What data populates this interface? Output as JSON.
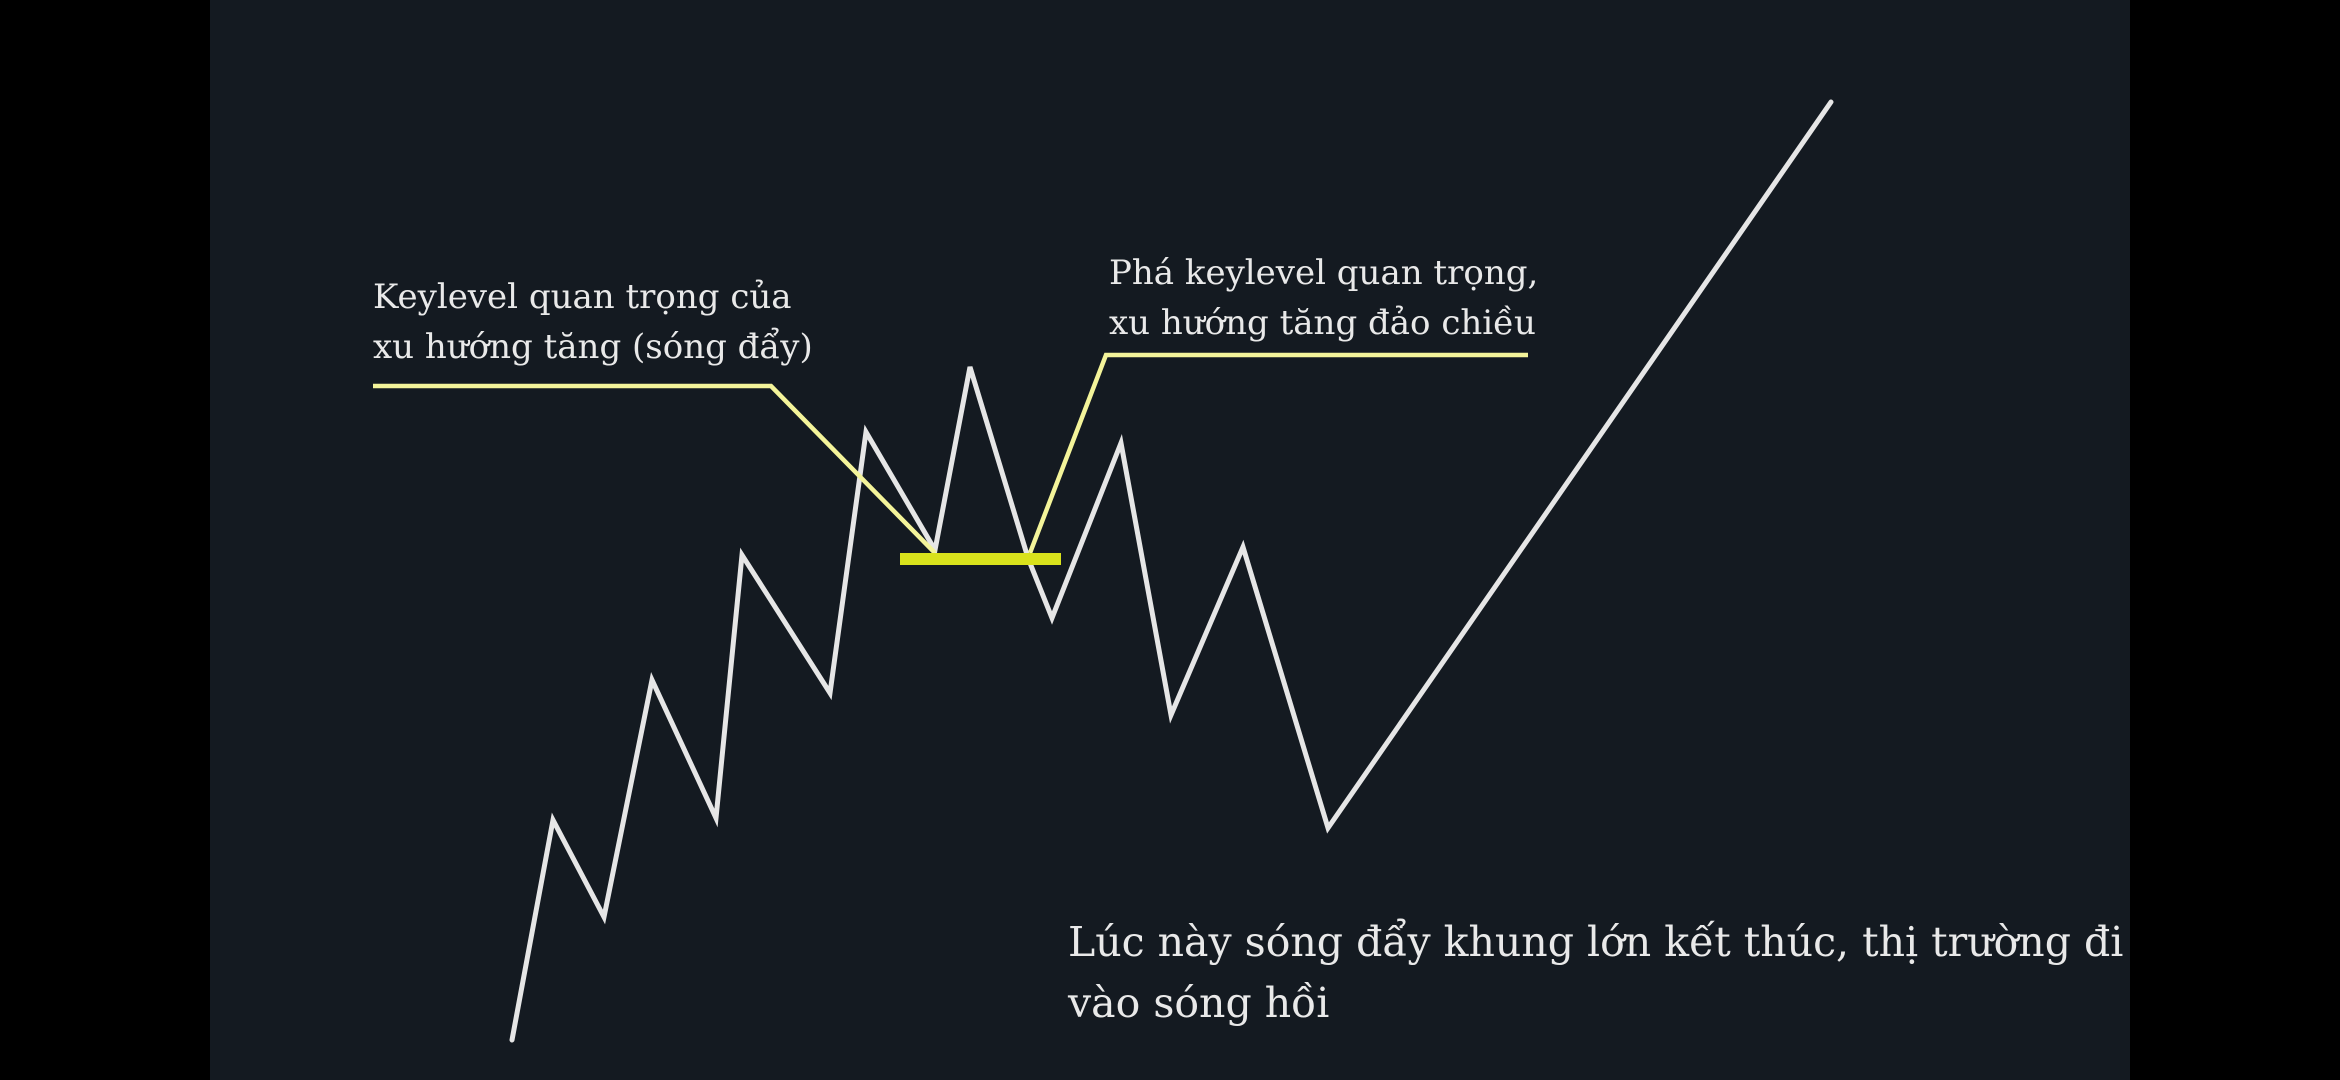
{
  "colors": {
    "outer_background": "#000000",
    "panel_background": "#141a21",
    "price_line": "#e6e6e6",
    "annotation_line": "#f4f49a",
    "keylevel_marker": "#d9e21c",
    "text": "#e9e9e9"
  },
  "annotations": {
    "keylevel_label": {
      "line1": "Keylevel quan trọng của",
      "line2": "xu hướng tăng (sóng đẩy)"
    },
    "break_label": {
      "line1": "Phá keylevel quan trọng,",
      "line2": "xu hướng tăng đảo chiều"
    },
    "conclusion": {
      "line1": "Lúc này sóng đẩy khung lớn kết thúc, thị trường đi",
      "line2": "vào sóng hồi"
    }
  }
}
